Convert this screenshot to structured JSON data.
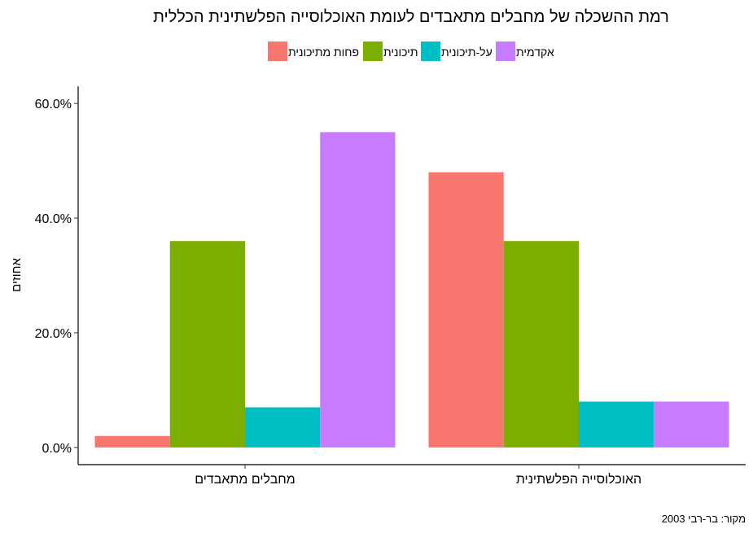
{
  "chart_data": {
    "type": "bar",
    "title": "רמת ההשכלה של מחבלים מתאבדים לעומת האוכלוסייה הפלשתינית הכללית",
    "xlabel": "",
    "ylabel": "אחוזים",
    "categories": [
      "מחבלים מתאבדים",
      "האוכלוסייה הפלשתינית"
    ],
    "series": [
      {
        "name": "פחות מתיכונית",
        "color": "#F8766D",
        "values": [
          2,
          48
        ]
      },
      {
        "name": "תיכונית",
        "color": "#7CAE00",
        "values": [
          36,
          36
        ]
      },
      {
        "name": "על-תיכונית",
        "color": "#00BFC4",
        "values": [
          7,
          8
        ]
      },
      {
        "name": "אקדמית",
        "color": "#C77CFF",
        "values": [
          55,
          8
        ]
      }
    ],
    "yticks": [
      "0.0%",
      "20.0%",
      "40.0%",
      "60.0%"
    ],
    "ytick_values": [
      0,
      20,
      40,
      60
    ],
    "ylim": [
      -3,
      63
    ],
    "legend_position": "top",
    "grid": false,
    "source": "מקור: בר-רבי 2003"
  }
}
